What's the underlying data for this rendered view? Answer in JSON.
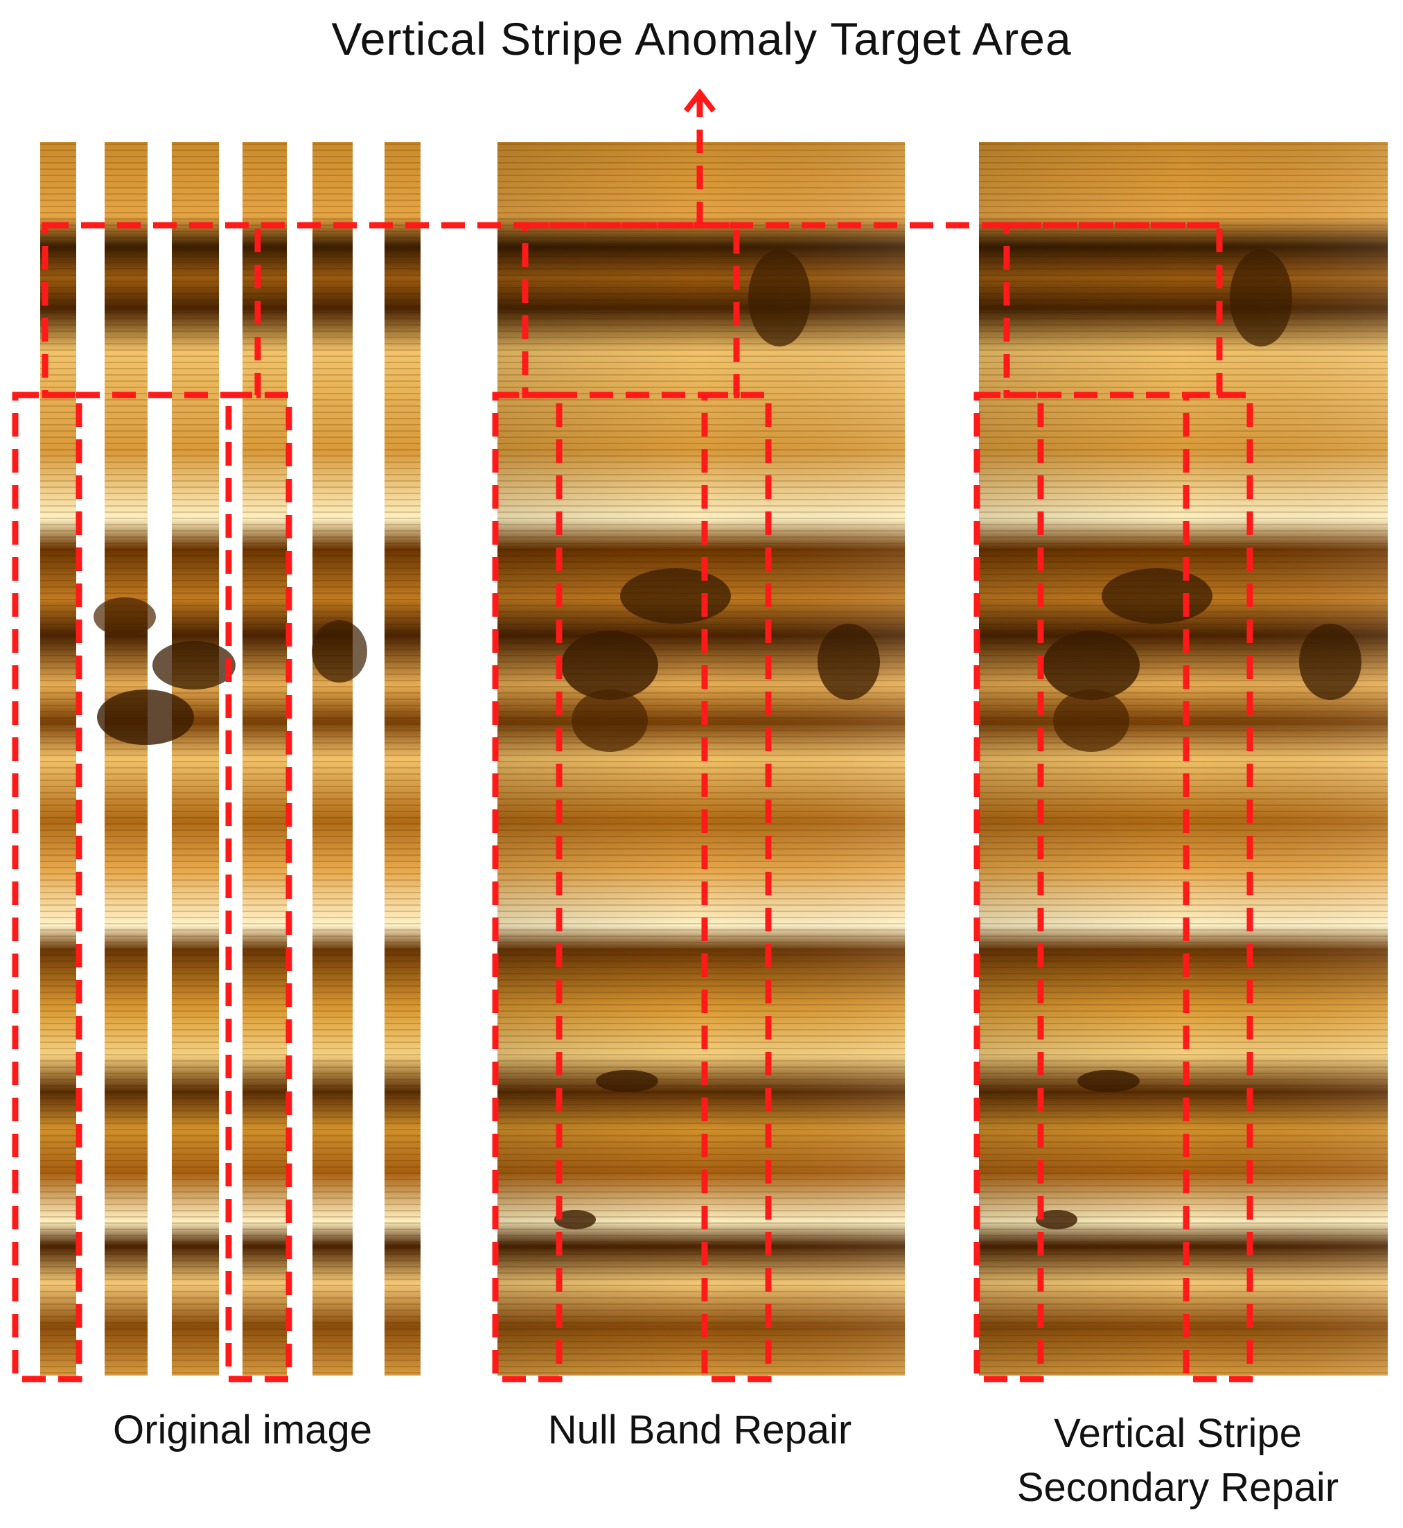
{
  "figure": {
    "title": "Vertical Stripe Anomaly Target Area",
    "panels": [
      {
        "id": "original",
        "caption": "Original image"
      },
      {
        "id": "null-band",
        "caption": "Null Band Repair"
      },
      {
        "id": "vertical",
        "caption_line1": "Vertical Stripe",
        "caption_line2": "Secondary Repair"
      }
    ]
  },
  "colors": {
    "highlight": "#ff1a1a",
    "image_dark": "#3a1c00",
    "image_mid": "#b86a10",
    "image_light": "#ffd27a",
    "image_bright": "#fff5cf",
    "text": "#111111"
  }
}
